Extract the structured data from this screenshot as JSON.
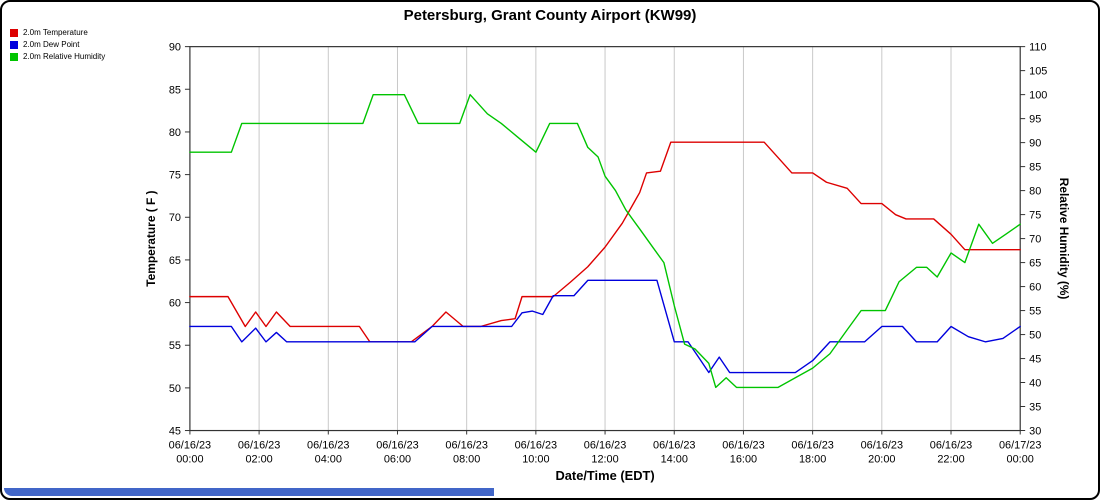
{
  "window": {
    "background": "#ffffff",
    "border_color": "#000000"
  },
  "bottom_bar": {
    "color": "#4166c8"
  },
  "chart_data": {
    "type": "line",
    "title": "Petersburg, Grant County Airport (KW99)",
    "legend_position": "top-left",
    "grid": {
      "vertical": true,
      "horizontal": false,
      "color": "#c8c8c8"
    },
    "plot_border_color": "#333333",
    "x_axis": {
      "title": "Date/Time (EDT)",
      "range_hours": [
        0,
        24
      ],
      "ticks": [
        {
          "hour": 0,
          "date": "06/16/23",
          "time": "00:00"
        },
        {
          "hour": 2,
          "date": "06/16/23",
          "time": "02:00"
        },
        {
          "hour": 4,
          "date": "06/16/23",
          "time": "04:00"
        },
        {
          "hour": 6,
          "date": "06/16/23",
          "time": "06:00"
        },
        {
          "hour": 8,
          "date": "06/16/23",
          "time": "08:00"
        },
        {
          "hour": 10,
          "date": "06/16/23",
          "time": "10:00"
        },
        {
          "hour": 12,
          "date": "06/16/23",
          "time": "12:00"
        },
        {
          "hour": 14,
          "date": "06/16/23",
          "time": "14:00"
        },
        {
          "hour": 16,
          "date": "06/16/23",
          "time": "16:00"
        },
        {
          "hour": 18,
          "date": "06/16/23",
          "time": "18:00"
        },
        {
          "hour": 20,
          "date": "06/16/23",
          "time": "20:00"
        },
        {
          "hour": 22,
          "date": "06/16/23",
          "time": "22:00"
        },
        {
          "hour": 24,
          "date": "06/17/23",
          "time": "00:00"
        }
      ]
    },
    "y_left": {
      "title": "Temperature ( F )",
      "min": 45,
      "max": 90,
      "ticks": [
        90,
        85,
        80,
        75,
        70,
        65,
        60,
        55,
        50,
        45
      ]
    },
    "y_right": {
      "title": "Relative Humidity (%)",
      "min": 30,
      "max": 110,
      "ticks": [
        110,
        105,
        100,
        95,
        90,
        85,
        80,
        75,
        70,
        65,
        60,
        55,
        50,
        45,
        40,
        35,
        30
      ]
    },
    "series": [
      {
        "name": "2.0m Temperature",
        "color": "#dd0000",
        "axis": "left",
        "points": [
          [
            0,
            60.7
          ],
          [
            1.1,
            60.7
          ],
          [
            1.6,
            57.2
          ],
          [
            1.9,
            58.9
          ],
          [
            2.2,
            57.2
          ],
          [
            2.5,
            58.9
          ],
          [
            2.9,
            57.2
          ],
          [
            4.9,
            57.2
          ],
          [
            5.2,
            55.4
          ],
          [
            6.4,
            55.4
          ],
          [
            7,
            57.2
          ],
          [
            7.4,
            58.9
          ],
          [
            7.9,
            57.2
          ],
          [
            8.4,
            57.2
          ],
          [
            9,
            57.9
          ],
          [
            9.4,
            58.1
          ],
          [
            9.6,
            60.7
          ],
          [
            10.5,
            60.7
          ],
          [
            11,
            62.4
          ],
          [
            11.5,
            64.2
          ],
          [
            12,
            66.5
          ],
          [
            12.5,
            69.3
          ],
          [
            13,
            72.9
          ],
          [
            13.2,
            75.2
          ],
          [
            13.6,
            75.4
          ],
          [
            13.9,
            78.8
          ],
          [
            16.6,
            78.8
          ],
          [
            17,
            77
          ],
          [
            17.4,
            75.2
          ],
          [
            18,
            75.2
          ],
          [
            18.4,
            74.1
          ],
          [
            19,
            73.4
          ],
          [
            19.4,
            71.6
          ],
          [
            20,
            71.6
          ],
          [
            20.4,
            70.3
          ],
          [
            20.7,
            69.8
          ],
          [
            21.5,
            69.8
          ],
          [
            22,
            68
          ],
          [
            22.4,
            66.2
          ],
          [
            24,
            66.2
          ]
        ]
      },
      {
        "name": "2.0m Dew Point",
        "color": "#0000dd",
        "axis": "left",
        "points": [
          [
            0,
            57.2
          ],
          [
            1.2,
            57.2
          ],
          [
            1.5,
            55.4
          ],
          [
            1.9,
            57
          ],
          [
            2.2,
            55.4
          ],
          [
            2.5,
            56.5
          ],
          [
            2.8,
            55.4
          ],
          [
            6.5,
            55.4
          ],
          [
            7,
            57.2
          ],
          [
            9.3,
            57.2
          ],
          [
            9.6,
            58.8
          ],
          [
            9.9,
            59
          ],
          [
            10.2,
            58.6
          ],
          [
            10.5,
            60.8
          ],
          [
            11.1,
            60.8
          ],
          [
            11.5,
            62.6
          ],
          [
            13.5,
            62.6
          ],
          [
            14,
            55.4
          ],
          [
            14.4,
            55.4
          ],
          [
            14.7,
            53.6
          ],
          [
            15,
            51.8
          ],
          [
            15.3,
            53.6
          ],
          [
            15.6,
            51.8
          ],
          [
            17.5,
            51.8
          ],
          [
            18,
            53.2
          ],
          [
            18.5,
            55.4
          ],
          [
            19.5,
            55.4
          ],
          [
            20,
            57.2
          ],
          [
            20.6,
            57.2
          ],
          [
            21,
            55.4
          ],
          [
            21.6,
            55.4
          ],
          [
            22,
            57.2
          ],
          [
            22.5,
            56
          ],
          [
            23,
            55.4
          ],
          [
            23.5,
            55.8
          ],
          [
            24,
            57.2
          ]
        ]
      },
      {
        "name": "2.0m Relative Humidity",
        "color": "#00c400",
        "axis": "right",
        "points": [
          [
            0,
            88
          ],
          [
            1.2,
            88
          ],
          [
            1.5,
            94
          ],
          [
            5,
            94
          ],
          [
            5.3,
            100
          ],
          [
            6.2,
            100
          ],
          [
            6.6,
            94
          ],
          [
            7.8,
            94
          ],
          [
            8.1,
            100
          ],
          [
            8.6,
            96
          ],
          [
            9,
            94
          ],
          [
            9.5,
            91
          ],
          [
            10,
            88
          ],
          [
            10.4,
            94
          ],
          [
            11.2,
            94
          ],
          [
            11.5,
            89
          ],
          [
            11.8,
            87
          ],
          [
            12,
            83
          ],
          [
            12.3,
            80
          ],
          [
            12.6,
            76
          ],
          [
            13,
            72
          ],
          [
            13.4,
            68
          ],
          [
            13.7,
            65
          ],
          [
            14,
            56
          ],
          [
            14.3,
            48
          ],
          [
            14.6,
            47
          ],
          [
            15,
            44
          ],
          [
            15.2,
            39
          ],
          [
            15.5,
            41
          ],
          [
            15.8,
            39
          ],
          [
            17,
            39
          ],
          [
            17.5,
            41
          ],
          [
            18,
            43
          ],
          [
            18.5,
            46
          ],
          [
            19,
            51
          ],
          [
            19.4,
            55
          ],
          [
            20.1,
            55
          ],
          [
            20.5,
            61
          ],
          [
            21,
            64
          ],
          [
            21.3,
            64
          ],
          [
            21.6,
            62
          ],
          [
            22,
            67
          ],
          [
            22.4,
            65
          ],
          [
            22.8,
            73
          ],
          [
            23.2,
            69
          ],
          [
            23.6,
            71
          ],
          [
            24,
            73
          ]
        ]
      }
    ]
  }
}
